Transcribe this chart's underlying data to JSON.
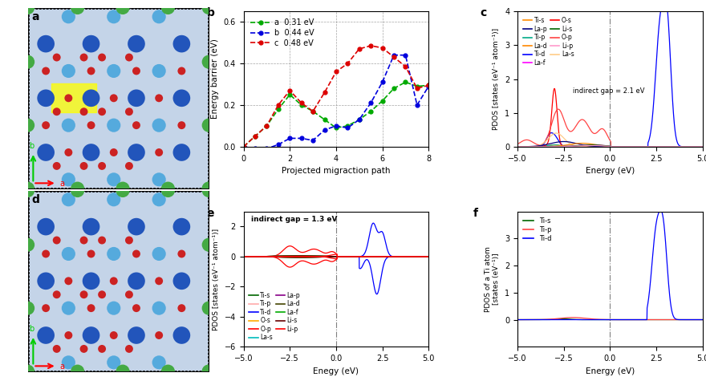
{
  "fig_width": 8.8,
  "fig_height": 4.75,
  "panel_b": {
    "xlabel": "Projected migraction path",
    "ylabel": "Energy barrier (eV)",
    "ylim": [
      0,
      0.65
    ],
    "xlim": [
      0,
      8
    ],
    "xticks": [
      0,
      2,
      4,
      6,
      8
    ],
    "yticks": [
      0.0,
      0.2,
      0.4,
      0.6
    ],
    "series_a": {
      "label": "a  0.31 eV",
      "color": "#00aa00",
      "x": [
        0,
        0.5,
        1,
        1.5,
        2,
        2.5,
        3,
        3.5,
        4,
        4.5,
        5,
        5.5,
        6,
        6.5,
        7,
        7.5,
        8
      ],
      "y": [
        0.0,
        0.05,
        0.1,
        0.18,
        0.25,
        0.2,
        0.17,
        0.13,
        0.09,
        0.1,
        0.13,
        0.17,
        0.22,
        0.28,
        0.31,
        0.29,
        0.295
      ]
    },
    "series_b": {
      "label": "b  0.44 eV",
      "color": "#0000dd",
      "x": [
        0,
        0.5,
        1,
        1.5,
        2,
        2.5,
        3,
        3.5,
        4,
        4.5,
        5,
        5.5,
        6,
        6.5,
        7,
        7.5,
        8
      ],
      "y": [
        0.0,
        -0.01,
        -0.01,
        0.01,
        0.04,
        0.04,
        0.03,
        0.08,
        0.1,
        0.09,
        0.13,
        0.21,
        0.31,
        0.44,
        0.44,
        0.2,
        0.29
      ]
    },
    "series_c": {
      "label": "c  0.48 eV",
      "color": "#dd0000",
      "x": [
        0,
        0.5,
        1,
        1.5,
        2,
        2.5,
        3,
        3.5,
        4,
        4.5,
        5,
        5.5,
        6,
        6.5,
        7,
        7.5,
        8
      ],
      "y": [
        0.0,
        0.05,
        0.1,
        0.2,
        0.27,
        0.21,
        0.17,
        0.26,
        0.36,
        0.4,
        0.47,
        0.485,
        0.475,
        0.43,
        0.385,
        0.28,
        0.295
      ]
    }
  },
  "colors_c": {
    "Ti-s": "#ff8c00",
    "Ti-p": "#00aa88",
    "Ti-d": "#0000ff",
    "O-s": "#ff0000",
    "O-p": "#ff4444",
    "La-s": "#ffcc88",
    "La-p": "#000080",
    "La-d": "#ff8800",
    "La-f": "#ff00ff",
    "Li-s": "#006600",
    "Li-p": "#ff99cc"
  },
  "colors_e": {
    "Ti-s": "#006600",
    "Ti-p": "#ffaaaa",
    "Ti-d": "#0000ff",
    "O-s": "#ffaa00",
    "O-p": "#ff0000",
    "La-s": "#00bbbb",
    "La-p": "#880088",
    "La-d": "#444400",
    "La-f": "#00aa00",
    "Li-s": "#660000",
    "Li-p": "#ff0000"
  },
  "colors_f": {
    "Ti-s": "#006600",
    "Ti-p": "#ff4444",
    "Ti-d": "#0000ff"
  },
  "legend_c_order": [
    "Ti-s",
    "La-p",
    "Ti-p",
    "La-d",
    "Ti-d",
    "La-f",
    "O-s",
    "Li-s",
    "O-p",
    "Li-p",
    "La-s"
  ],
  "legend_e_order": [
    "Ti-s",
    "Ti-p",
    "Ti-d",
    "O-s",
    "O-p",
    "La-s",
    "La-p",
    "La-d",
    "La-f",
    "Li-s",
    "Li-p"
  ],
  "legend_f_order": [
    "Ti-s",
    "Ti-p",
    "Ti-d"
  ],
  "background": "#ffffff"
}
